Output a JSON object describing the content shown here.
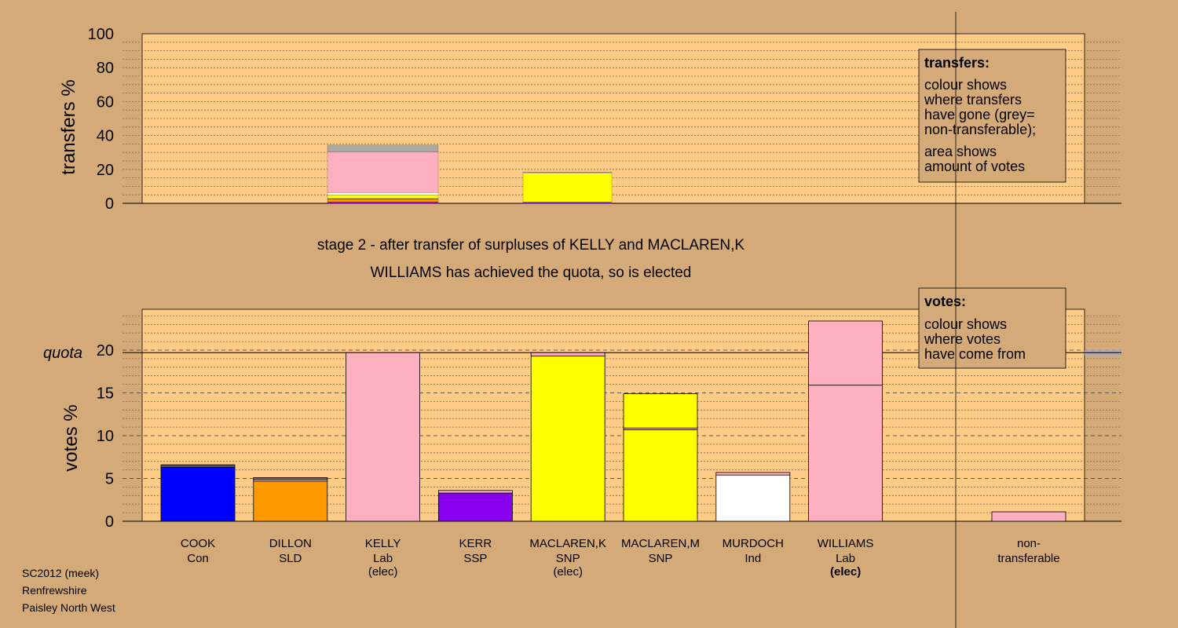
{
  "colors": {
    "background": "#d4aa78",
    "plot_area": "#ffcc88",
    "Con": "#0000ff",
    "SLD": "#ff9900",
    "Lab": "#ffb0c0",
    "SSP": "#8800ee",
    "SNP": "#ffff00",
    "Ind": "#ffffff",
    "non_transferable": "#aaaaaa",
    "dark_red": "#990000"
  },
  "subtitle": {
    "line1": "stage 2 - after transfer of surpluses of KELLY and MACLAREN,K",
    "line2": "WILLIAMS has achieved the quota, so is elected"
  },
  "footer": [
    "SC2012 (meek)",
    "Renfrewshire",
    "Paisley North West"
  ],
  "transfers_legend": {
    "title": "transfers:",
    "lines": [
      "colour shows",
      "where transfers",
      "have gone (grey=",
      "non-transferable);",
      "area shows",
      "amount of votes"
    ]
  },
  "votes_legend": {
    "title": "votes:",
    "lines": [
      "colour shows",
      "where votes",
      "have come from"
    ]
  },
  "chart_data": [
    {
      "type": "bar",
      "ylabel": "transfers %",
      "ylim": [
        0,
        100
      ],
      "yticks": [
        "0",
        "20",
        "40",
        "60",
        "80",
        "100"
      ],
      "grid": true,
      "legend": "top-right",
      "bars": [
        {
          "candidate": "KELLY",
          "segments": [
            {
              "to": "SSP",
              "value": 0.6,
              "color": "#8800ee"
            },
            {
              "to": "Con",
              "value": 0.3,
              "color": "#0000ff"
            },
            {
              "to": "SLD",
              "value": 1.5,
              "color": "#ff9900"
            },
            {
              "to": "dark",
              "value": 0.4,
              "color": "#990000"
            },
            {
              "to": "SNP",
              "value": 2.2,
              "color": "#ffff00"
            },
            {
              "to": "Ind",
              "value": 1.3,
              "color": "#ffffff"
            },
            {
              "to": "Lab",
              "value": 24.0,
              "color": "#ffb0c0"
            },
            {
              "to": "non-transferable",
              "value": 4.0,
              "color": "#aaaaaa"
            }
          ]
        },
        {
          "candidate": "MACLAREN,K",
          "segments": [
            {
              "to": "SSP",
              "value": 0.5,
              "color": "#8800ee"
            },
            {
              "to": "SLD",
              "value": 0.3,
              "color": "#ff9900"
            },
            {
              "to": "SNP",
              "value": 17.0,
              "color": "#ffff00"
            },
            {
              "to": "Ind",
              "value": 0.4,
              "color": "#ffffff"
            },
            {
              "to": "Lab",
              "value": 0.3,
              "color": "#ffb0c0"
            }
          ]
        }
      ]
    },
    {
      "type": "bar",
      "ylabel": "votes %",
      "ylim": [
        0,
        25
      ],
      "yticks": [
        "0",
        "5",
        "10",
        "15",
        "20"
      ],
      "quota": 19.7,
      "quota_label": "quota",
      "grid": true,
      "legend": "top-right",
      "candidates": [
        {
          "name": "COOK",
          "party": "Con",
          "elected": "",
          "segments": [
            {
              "value": 6.3,
              "color": "#0000ff"
            },
            {
              "value": 0.3,
              "color": "#555555"
            }
          ]
        },
        {
          "name": "DILLON",
          "party": "SLD",
          "elected": "",
          "segments": [
            {
              "value": 4.7,
              "color": "#ff9900"
            },
            {
              "value": 0.2,
              "color": "#ffb0c0"
            },
            {
              "value": 0.2,
              "color": "#cc6600"
            }
          ]
        },
        {
          "name": "KELLY",
          "party": "Lab",
          "elected": "(elec)",
          "segments": [
            {
              "value": 19.7,
              "color": "#ffb0c0"
            }
          ]
        },
        {
          "name": "KERR",
          "party": "SSP",
          "elected": "",
          "segments": [
            {
              "value": 3.3,
              "color": "#8800ee"
            },
            {
              "value": 0.3,
              "color": "#ffb0c0"
            }
          ]
        },
        {
          "name": "MACLAREN,K",
          "party": "SNP",
          "elected": "(elec)",
          "segments": [
            {
              "value": 19.3,
              "color": "#ffff00"
            },
            {
              "value": 0.4,
              "color": "#ffb0c0"
            }
          ]
        },
        {
          "name": "MACLAREN,M",
          "party": "SNP",
          "elected": "",
          "segments": [
            {
              "value": 10.7,
              "color": "#ffff00"
            },
            {
              "value": 0.2,
              "color": "#ffb0c0"
            },
            {
              "value": 4.0,
              "color": "#ffff00"
            }
          ]
        },
        {
          "name": "MURDOCH",
          "party": "Ind",
          "elected": "",
          "segments": [
            {
              "value": 5.4,
              "color": "#ffffff"
            },
            {
              "value": 0.3,
              "color": "#ffb0c0"
            }
          ]
        },
        {
          "name": "WILLIAMS",
          "party": "Lab",
          "elected": "(elec)",
          "segments": [
            {
              "value": 15.9,
              "color": "#ffb0c0"
            },
            {
              "value": 7.5,
              "color": "#ffb0c0"
            }
          ]
        }
      ],
      "non_transferable": {
        "label_line1": "non-",
        "label_line2": "transferable",
        "value": 1.1,
        "color": "#ffb0c0"
      }
    }
  ]
}
